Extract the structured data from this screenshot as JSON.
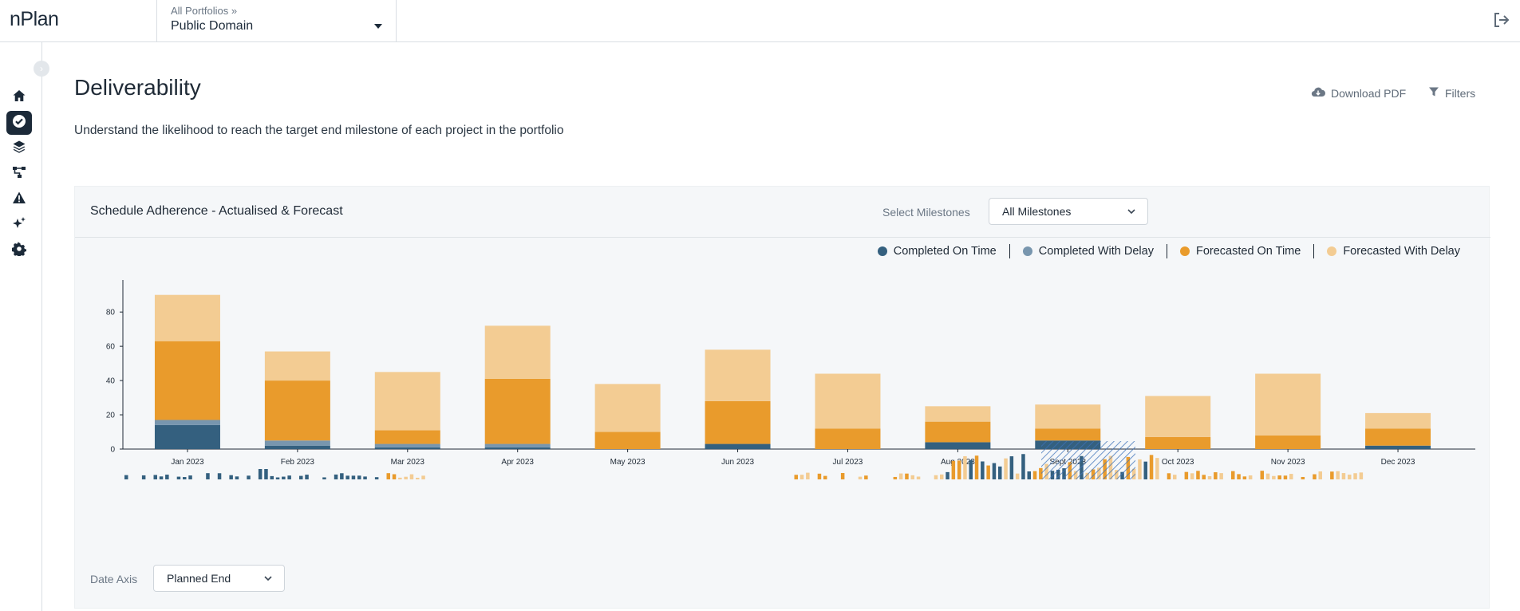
{
  "app": {
    "logo": "nPlan"
  },
  "header": {
    "breadcrumb": "All Portfolios »",
    "portfolio": "Public Domain"
  },
  "sidebar": {
    "items": [
      {
        "name": "home-icon",
        "active": false
      },
      {
        "name": "check-circle-icon",
        "active": true
      },
      {
        "name": "layers-icon",
        "active": false
      },
      {
        "name": "hierarchy-icon",
        "active": false
      },
      {
        "name": "warning-icon",
        "active": false
      },
      {
        "name": "sparkle-icon",
        "active": false
      },
      {
        "name": "gear-icon",
        "active": false
      }
    ]
  },
  "page": {
    "title": "Deliverability",
    "subtitle": "Understand the likelihood to reach the target end milestone of each project in the portfolio",
    "download_label": "Download PDF",
    "filters_label": "Filters"
  },
  "card": {
    "title": "Schedule Adherence - Actualised & Forecast",
    "select_label": "Select Milestones",
    "select_value": "All Milestones",
    "date_axis_label": "Date Axis",
    "date_axis_value": "Planned End"
  },
  "colors": {
    "completed_on_time": "#34607f",
    "completed_with_delay": "#7896ae",
    "forecasted_on_time": "#e99b2c",
    "forecasted_with_delay": "#f3cc93",
    "brush": "#3d72b8"
  },
  "chart_data": {
    "type": "bar",
    "stacked": true,
    "categories": [
      "Jan 2023",
      "Feb 2023",
      "Mar 2023",
      "Apr 2023",
      "May 2023",
      "Jun 2023",
      "Jul 2023",
      "Aug 2023",
      "Sept 2023",
      "Oct 2023",
      "Nov 2023",
      "Dec 2023"
    ],
    "series": [
      {
        "name": "Completed On Time",
        "values": [
          14,
          2,
          1,
          1,
          0,
          3,
          0,
          4,
          5,
          0,
          0,
          2
        ]
      },
      {
        "name": "Completed With Delay",
        "values": [
          3,
          3,
          2,
          2,
          0,
          0,
          0,
          0,
          0,
          0,
          0,
          0
        ]
      },
      {
        "name": "Forecasted On Time",
        "values": [
          46,
          35,
          8,
          38,
          10,
          25,
          12,
          12,
          7,
          7,
          8,
          10
        ]
      },
      {
        "name": "Forecasted With Delay",
        "values": [
          27,
          17,
          34,
          31,
          28,
          30,
          32,
          9,
          14,
          24,
          36,
          9
        ]
      }
    ],
    "yticks": [
      0,
      20,
      40,
      60,
      80
    ],
    "ylim": [
      0,
      90
    ],
    "legend": "top-right"
  }
}
